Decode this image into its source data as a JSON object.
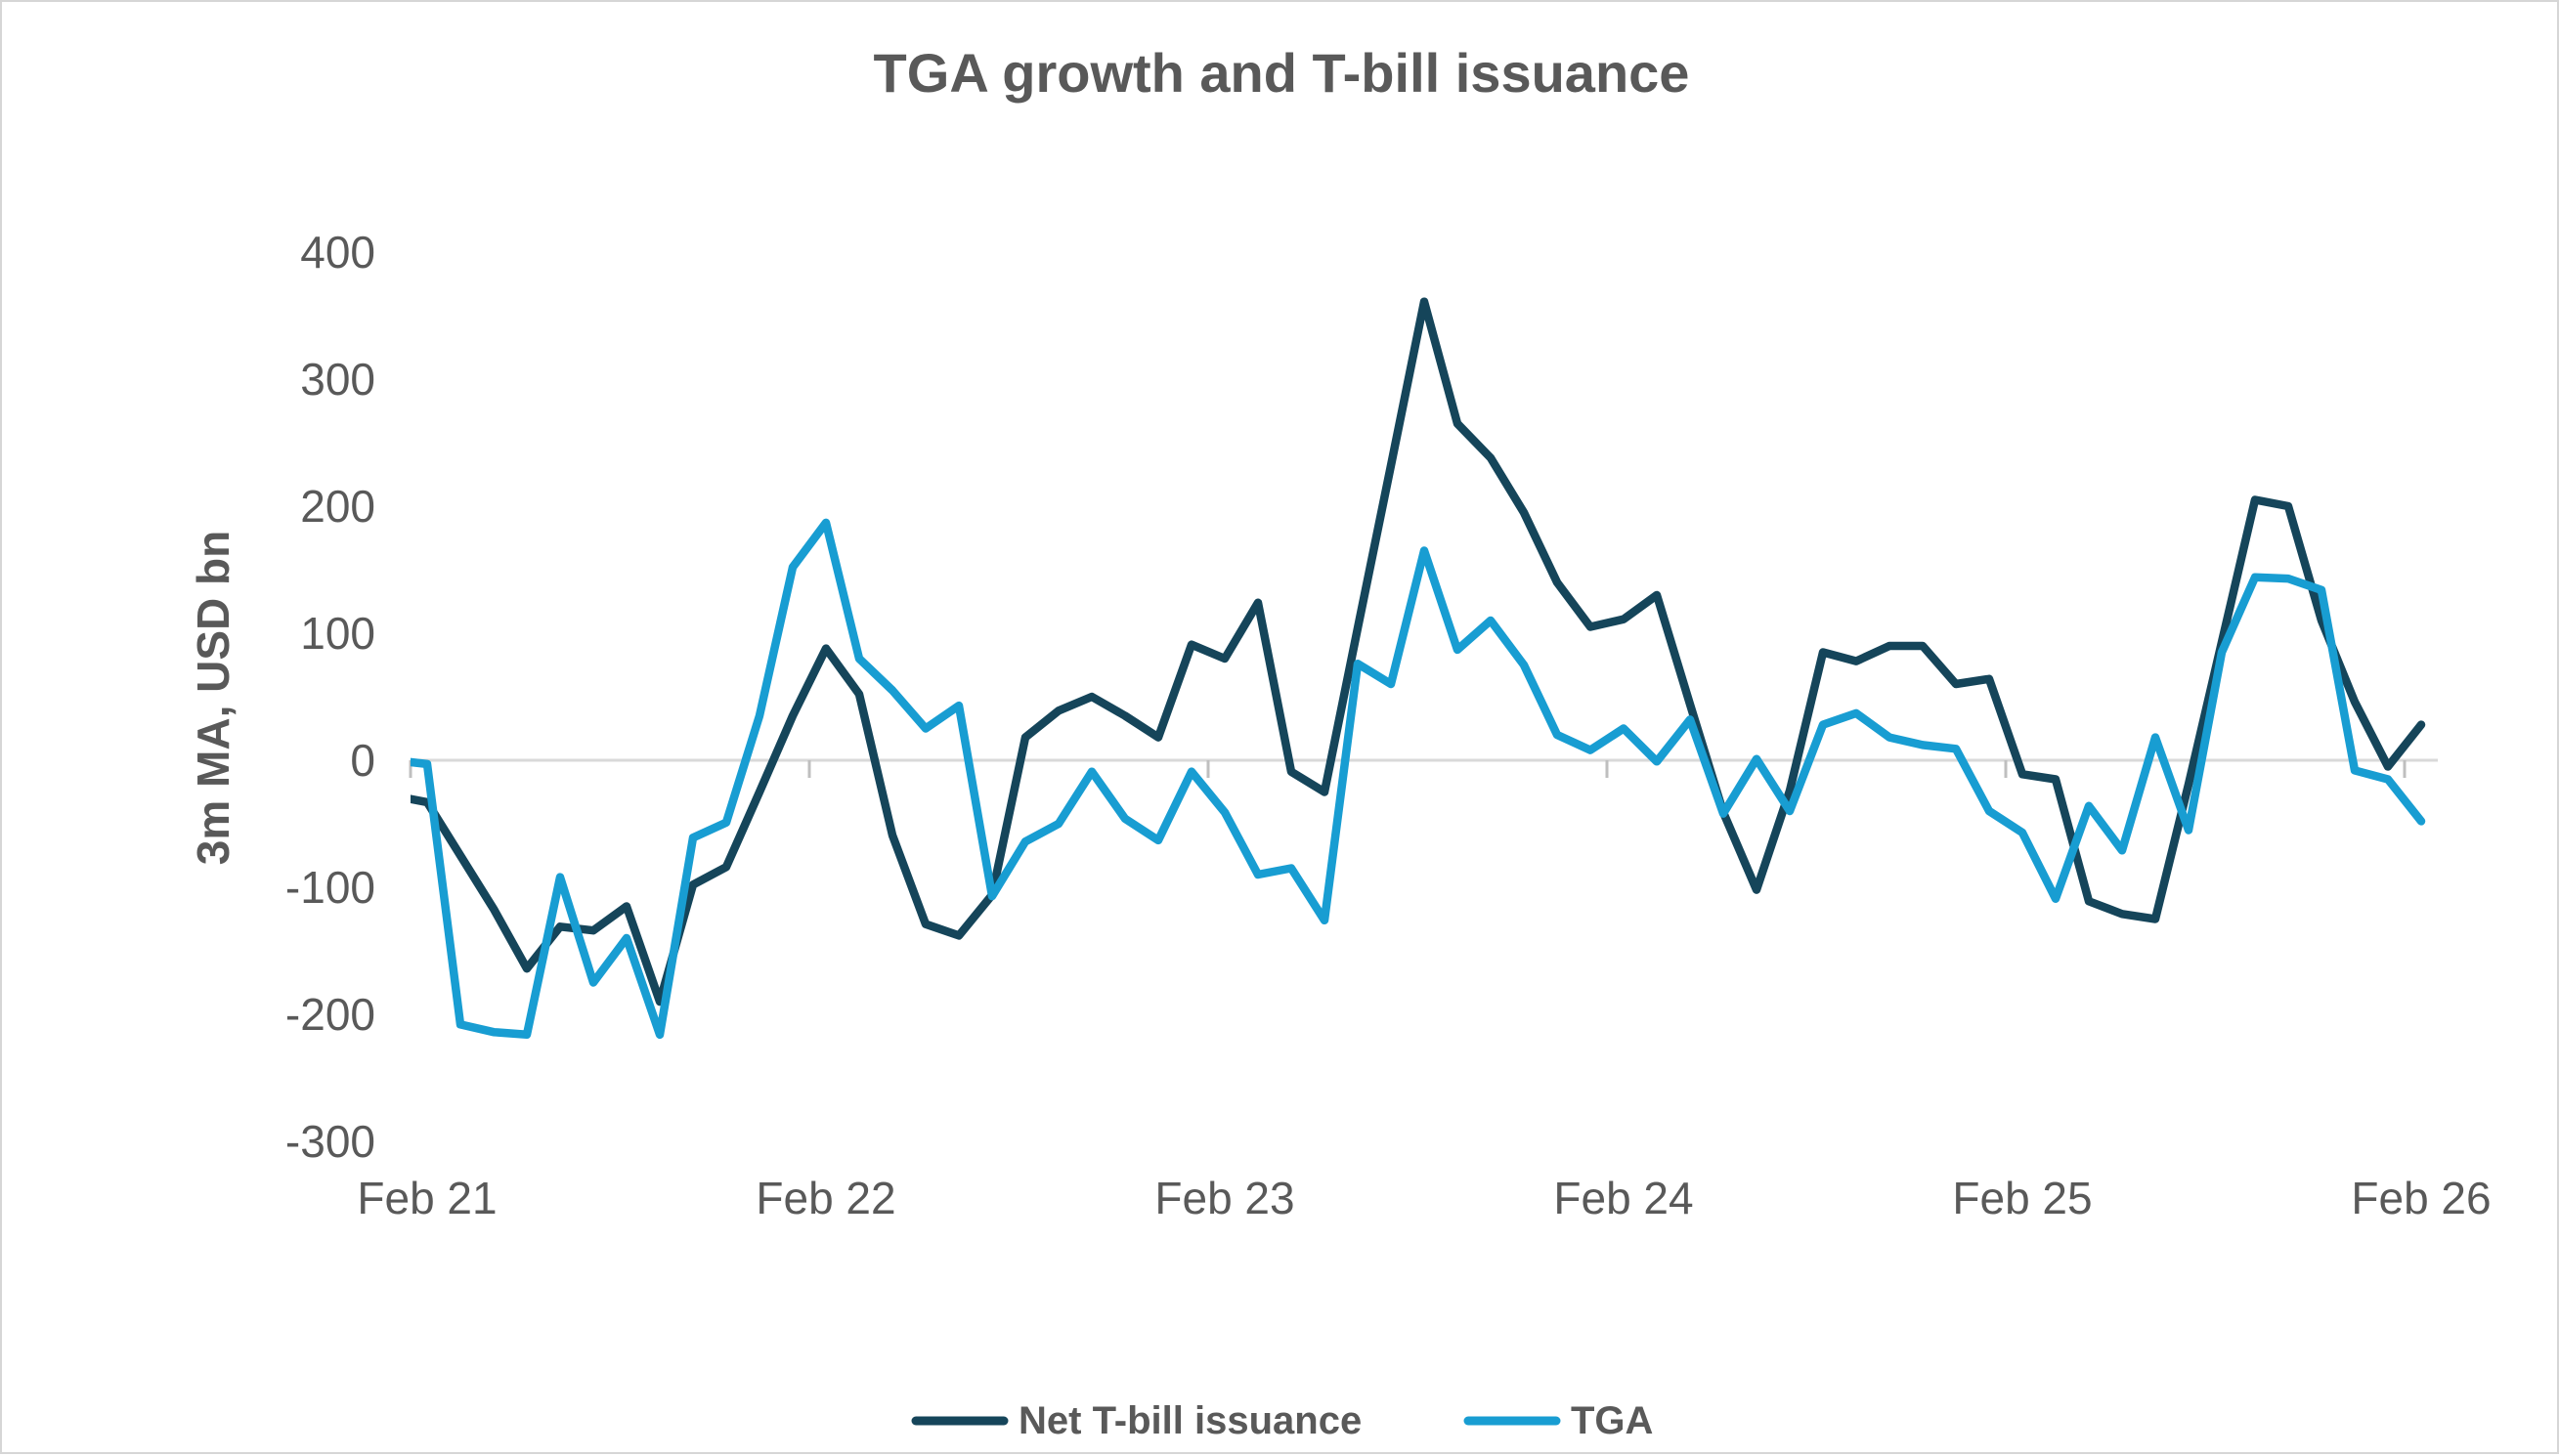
{
  "title": "TGA growth and T-bill issuance",
  "y_axis": {
    "label": "3m MA, USD bn",
    "ticks": [
      "400",
      "300",
      "200",
      "100",
      "0",
      "-100",
      "-200",
      "-300"
    ]
  },
  "x_axis": {
    "ticks": [
      "Feb 21",
      "Feb 22",
      "Feb 23",
      "Feb 24",
      "Feb 25",
      "Feb 26"
    ]
  },
  "legend": {
    "items": [
      {
        "label": "Net T-bill issuance",
        "color": "#15455A"
      },
      {
        "label": "TGA",
        "color": "#189DD2"
      }
    ]
  },
  "chart_data": {
    "type": "line",
    "title": "TGA growth and T-bill issuance",
    "ylabel": "3m MA, USD bn",
    "ylim": [
      -300,
      400
    ],
    "grid": "zero-line-only",
    "legend_position": "bottom-center",
    "x_start_month": "2021-02",
    "x_end_month": "2026-02",
    "x_tick_labels": [
      "Feb 21",
      "Feb 22",
      "Feb 23",
      "Feb 24",
      "Feb 25",
      "Feb 26"
    ],
    "series": [
      {
        "name": "Net T-bill issuance",
        "color": "#15455A",
        "pre_value": -28,
        "values": [
          -33,
          -75,
          -117,
          -164,
          -131,
          -134,
          -115,
          -190,
          -98,
          -84,
          -25,
          35,
          88,
          52,
          -59,
          -129,
          -138,
          -106,
          18,
          39,
          50,
          35,
          18,
          91,
          80,
          124,
          -9,
          -25,
          104,
          232,
          361,
          265,
          238,
          195,
          140,
          105,
          111,
          130,
          44,
          -41,
          -102,
          -24,
          85,
          78,
          90,
          90,
          60,
          64,
          -11,
          -15,
          -111,
          -121,
          -125,
          -19,
          93,
          205,
          200,
          110,
          46,
          -5,
          28
        ]
      },
      {
        "name": "TGA",
        "color": "#189DD2",
        "pre_value": 0,
        "values": [
          -3,
          -208,
          -214,
          -216,
          -92,
          -175,
          -140,
          -216,
          -61,
          -49,
          35,
          152,
          187,
          80,
          55,
          25,
          43,
          -107,
          -64,
          -50,
          -9,
          -46,
          -63,
          -9,
          -41,
          -90,
          -85,
          -126,
          76,
          60,
          165,
          87,
          110,
          75,
          20,
          8,
          25,
          -1,
          32,
          -42,
          1,
          -40,
          28,
          37,
          18,
          12,
          9,
          -40,
          -57,
          -109,
          -36,
          -71,
          18,
          -55,
          85,
          144,
          143,
          134,
          -8,
          -15,
          -48
        ]
      }
    ],
    "layout": {
      "x0": 435,
      "x_step": 34,
      "y_zero": 776,
      "y_per_unit": 1.3,
      "plot_left": 418,
      "plot_right": 2492,
      "year_tick_xs": [
        418,
        826,
        1234,
        1642,
        2050,
        2458
      ],
      "y_tick_ys": [
        256,
        386,
        516,
        646,
        776,
        906,
        1036,
        1166
      ],
      "x_label_xs": [
        435,
        843,
        1251,
        1659,
        2067,
        2475
      ],
      "colors": {
        "zero_line": "#D9D9D9",
        "axis_tick": "#BFBFBF",
        "text": "#595959"
      }
    }
  }
}
